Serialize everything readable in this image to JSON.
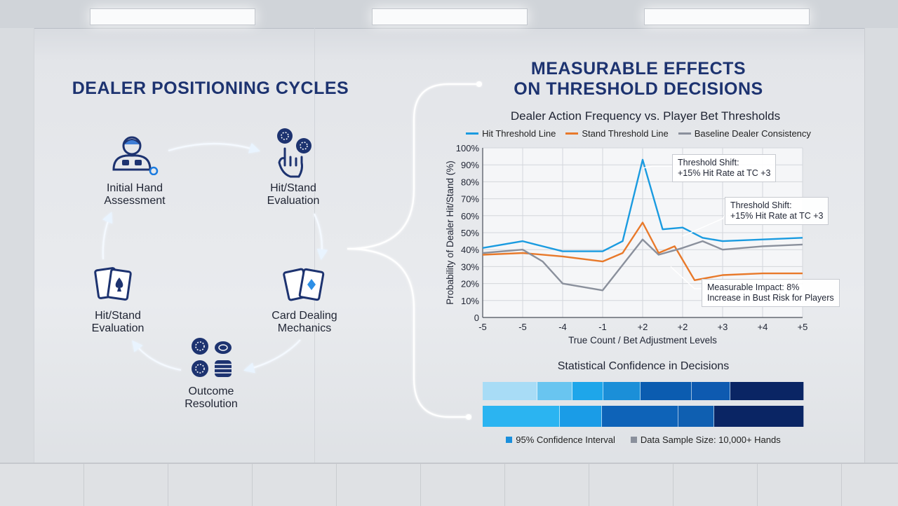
{
  "left": {
    "title": "DEALER POSITIONING CYCLES",
    "nodes": {
      "initial": [
        "Initial Hand",
        "Assessment"
      ],
      "hitstand_top": [
        "Hit/Stand",
        "Evaluation"
      ],
      "card_dealing": [
        "Card Dealing",
        "Mechanics"
      ],
      "outcome": [
        "Outcome",
        "Resolution"
      ],
      "hitstand_left": [
        "Hit/Stand",
        "Evaluation"
      ]
    }
  },
  "right": {
    "title_line1": "MEASURABLE EFFECTS",
    "title_line2": "ON THRESHOLD DECISIONS"
  },
  "colors": {
    "hit": "#1a9be0",
    "stand": "#e8792a",
    "baseline": "#8a909c",
    "navy": "#1d3370"
  },
  "chart_data": {
    "type": "line",
    "title": "Dealer Action Frequency vs. Player Bet Thresholds",
    "xlabel": "True Count / Bet Adjustment Levels",
    "ylabel": "Probability of Dealer Hit/Stand (%)",
    "x": [
      "-5",
      "-5",
      "-4",
      "-1",
      "+2",
      "+2",
      "+3",
      "+4",
      "+5"
    ],
    "ytick_labels": [
      "0",
      "10%",
      "20%",
      "30%",
      "40%",
      "50%",
      "60%",
      "70%",
      "80%",
      "90%",
      "100%"
    ],
    "ylim": [
      0,
      100
    ],
    "grid": true,
    "legend_position": "top",
    "series": [
      {
        "name": "Hit Threshold Line",
        "points": [
          [
            0,
            41
          ],
          [
            1.0,
            45
          ],
          [
            1.5,
            42
          ],
          [
            2.0,
            39
          ],
          [
            3.0,
            39
          ],
          [
            3.5,
            45
          ],
          [
            4.0,
            93
          ],
          [
            4.5,
            52
          ],
          [
            5.0,
            53
          ],
          [
            5.5,
            47
          ],
          [
            6.0,
            45
          ],
          [
            7.0,
            46
          ],
          [
            8.0,
            47
          ]
        ]
      },
      {
        "name": "Stand Threshold Line",
        "points": [
          [
            0,
            37
          ],
          [
            1.0,
            38
          ],
          [
            2.0,
            36
          ],
          [
            3.0,
            33
          ],
          [
            3.5,
            38
          ],
          [
            4.0,
            56
          ],
          [
            4.4,
            38
          ],
          [
            4.8,
            42
          ],
          [
            5.3,
            22
          ],
          [
            6.0,
            25
          ],
          [
            7.0,
            26
          ],
          [
            8.0,
            26
          ]
        ]
      },
      {
        "name": "Baseline Dealer Consistency",
        "points": [
          [
            0,
            38
          ],
          [
            1.0,
            40
          ],
          [
            1.5,
            33
          ],
          [
            2.0,
            20
          ],
          [
            3.0,
            16
          ],
          [
            4.0,
            46
          ],
          [
            4.4,
            37
          ],
          [
            5.0,
            41
          ],
          [
            5.5,
            45
          ],
          [
            6.0,
            40
          ],
          [
            7.0,
            42
          ],
          [
            8.0,
            43
          ]
        ]
      }
    ],
    "annotations": [
      {
        "lines": [
          "Threshold Shift:",
          "+15% Hit Rate at TC +3"
        ]
      },
      {
        "lines": [
          "Threshold Shift:",
          "+15% Hit Rate at TC +3"
        ]
      },
      {
        "lines": [
          "Measurable Impact: 8%",
          "Increase in Bust Risk for Players"
        ]
      }
    ]
  },
  "confidence": {
    "title": "Statistical Confidence in Decisions",
    "bar1": [
      {
        "share": 0.17,
        "color": "#a8dcf6"
      },
      {
        "share": 0.11,
        "color": "#69c5f0"
      },
      {
        "share": 0.095,
        "color": "#1ea6ea"
      },
      {
        "share": 0.115,
        "color": "#1b8fd8"
      },
      {
        "share": 0.16,
        "color": "#0b5cb0"
      },
      {
        "share": 0.12,
        "color": "#0e5ab0"
      },
      {
        "share": 0.23,
        "color": "#0a2564"
      }
    ],
    "bar2": [
      {
        "share": 0.24,
        "color": "#2bb4f1"
      },
      {
        "share": 0.13,
        "color": "#1a9ce7"
      },
      {
        "share": 0.24,
        "color": "#0e63b8"
      },
      {
        "share": 0.11,
        "color": "#0f5fb1"
      },
      {
        "share": 0.28,
        "color": "#0a2564"
      }
    ],
    "legend": [
      {
        "label": "95% Confidence Interval",
        "color": "#1a8fdc"
      },
      {
        "label": "Data Sample Size: 10,000+ Hands",
        "color": "#8a909c"
      }
    ]
  }
}
